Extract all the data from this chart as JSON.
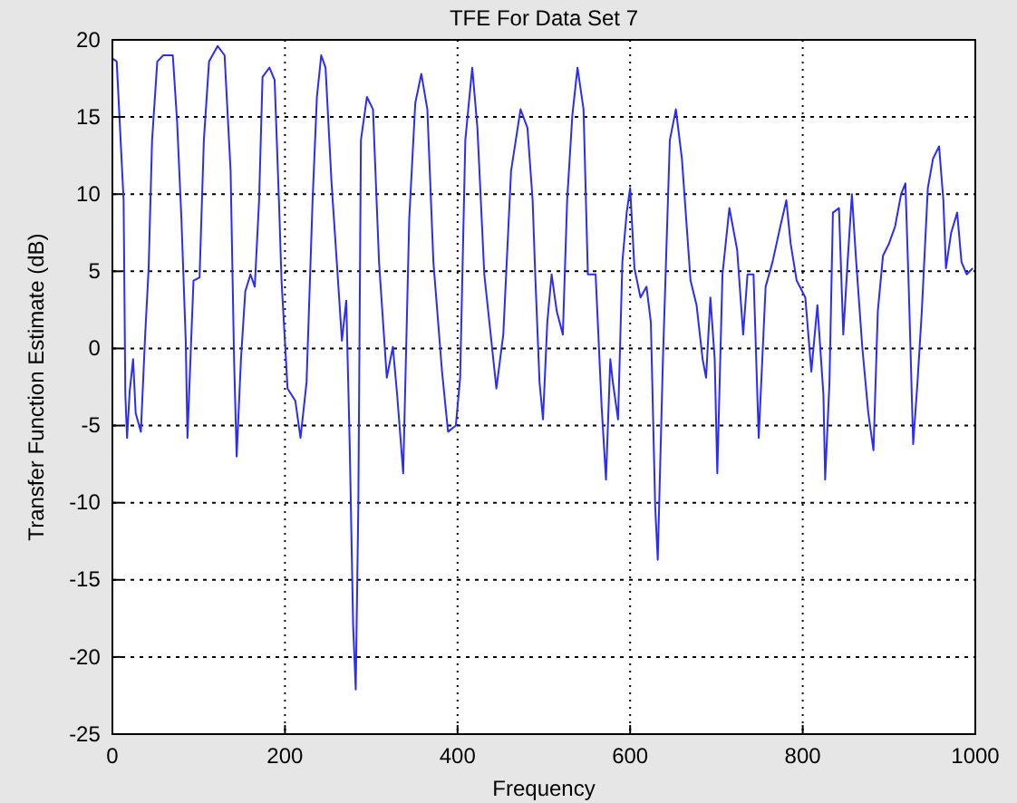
{
  "chart_data": {
    "type": "line",
    "title": "TFE For Data Set 7",
    "xlabel": "Frequency",
    "ylabel": "Transfer Function Estimate (dB)",
    "xlim": [
      0,
      1000
    ],
    "ylim": [
      -25,
      20
    ],
    "xticks": [
      0,
      200,
      400,
      600,
      800,
      1000
    ],
    "yticks": [
      -25,
      -20,
      -15,
      -10,
      -5,
      0,
      5,
      10,
      15,
      20
    ],
    "grid": true,
    "line_style": "solid",
    "marker": "none",
    "series": [
      {
        "color": "#2b2bff",
        "x": [
          0,
          5,
          13,
          15,
          17,
          20,
          24,
          27,
          33,
          38,
          42,
          46,
          52,
          59,
          70,
          75,
          80,
          85,
          87,
          91,
          94,
          101,
          106,
          112,
          122,
          130,
          137,
          141,
          144,
          149,
          154,
          160,
          165,
          170,
          174,
          182,
          188,
          193,
          196,
          203,
          212,
          218,
          225,
          232,
          237,
          242,
          247,
          254,
          261,
          266,
          271,
          275,
          279,
          282,
          285,
          288,
          295,
          302,
          309,
          318,
          325,
          330,
          337,
          344,
          351,
          358,
          365,
          372,
          382,
          389,
          398,
          403,
          409,
          417,
          423,
          431,
          445,
          453,
          462,
          473,
          481,
          487,
          490,
          495,
          499,
          504,
          509,
          515,
          522,
          527,
          533,
          539,
          546,
          551,
          560,
          567,
          572,
          577,
          580,
          586,
          591,
          596,
          600,
          605,
          612,
          619,
          624,
          629,
          632,
          638,
          646,
          653,
          660,
          670,
          677,
          684,
          688,
          693,
          698,
          701,
          707,
          715,
          724,
          731,
          736,
          743,
          749,
          757,
          765,
          774,
          781,
          786,
          793,
          803,
          810,
          817,
          824,
          826,
          831,
          835,
          842,
          847,
          852,
          857,
          862,
          869,
          876,
          882,
          887,
          893,
          900,
          907,
          914,
          919,
          923,
          928,
          933,
          938,
          945,
          951,
          958,
          963,
          966,
          972,
          979,
          984,
          990,
          997
        ],
        "values": [
          18.8,
          18.6,
          9.6,
          -3,
          -5.8,
          -2.8,
          -0.7,
          -4.2,
          -5.4,
          0.9,
          5.2,
          13.5,
          18.6,
          19,
          19,
          14.7,
          8.4,
          0.5,
          -5.8,
          0.1,
          4.4,
          4.6,
          13.5,
          18.6,
          19.6,
          19,
          11.5,
          -0.7,
          -7,
          -0.7,
          3.7,
          4.8,
          4,
          9.6,
          17.6,
          18.2,
          17.4,
          9.6,
          4.4,
          -2.6,
          -3.4,
          -5.8,
          -2.2,
          9.6,
          16.3,
          19,
          18.2,
          10.7,
          4.8,
          0.5,
          3.1,
          -6.2,
          -18,
          -22.1,
          -10.2,
          13.5,
          16.3,
          15.5,
          5.6,
          -1.9,
          0.1,
          -3,
          -8.1,
          8.4,
          15.9,
          17.8,
          15.5,
          5.6,
          -1.5,
          -5.4,
          -5,
          -1.9,
          13.5,
          18.2,
          14.3,
          4.8,
          -2.6,
          0.9,
          11.5,
          15.5,
          14.3,
          9.6,
          4.8,
          -2.2,
          -4.6,
          1.7,
          4.8,
          2.4,
          0.9,
          9.6,
          15.1,
          18.2,
          15.5,
          4.8,
          4.8,
          -3.8,
          -8.5,
          -0.7,
          -2.2,
          -4.6,
          5.6,
          8.8,
          10.4,
          5.2,
          3.3,
          4,
          1.7,
          -10.2,
          -13.7,
          -0.7,
          13.5,
          15.5,
          12.3,
          4.4,
          2.8,
          -0.7,
          -1.9,
          3.3,
          -0.7,
          -8.1,
          4.8,
          9.1,
          6.4,
          0.9,
          4.8,
          4.8,
          -5.8,
          4,
          5.6,
          7.9,
          9.6,
          6.8,
          4.4,
          3.3,
          -1.5,
          2.8,
          -3,
          -8.5,
          -2.2,
          8.8,
          9.1,
          0.9,
          5.6,
          10,
          5.6,
          0.1,
          -4.2,
          -6.6,
          2.4,
          6,
          6.8,
          7.9,
          10,
          10.7,
          3.7,
          -6.2,
          -2.2,
          2.4,
          10.4,
          12.3,
          13.1,
          9.6,
          5.2,
          7.5,
          8.8,
          5.6,
          4.8,
          5.2
        ]
      }
    ]
  }
}
